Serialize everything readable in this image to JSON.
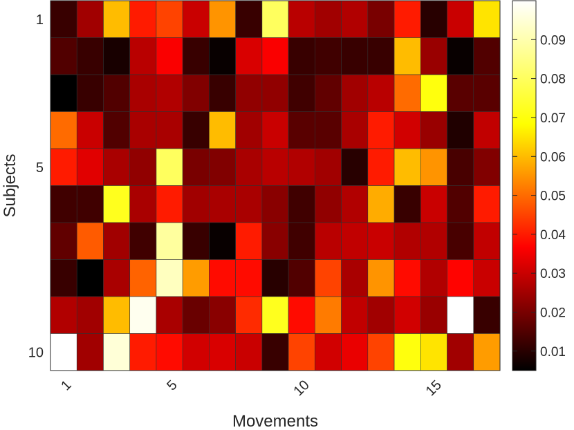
{
  "chart_data": {
    "type": "heatmap",
    "colormap": "hot",
    "xlabel": "Movements",
    "ylabel": "Subjects",
    "x_tick_labels": [
      "1",
      "5",
      "10",
      "15"
    ],
    "x_tick_positions": [
      1,
      5,
      10,
      15
    ],
    "y_tick_labels": [
      "1",
      "5",
      "10"
    ],
    "y_tick_positions": [
      1,
      5,
      10
    ],
    "n_rows": 10,
    "n_cols": 17,
    "color_range": [
      0.005,
      0.1
    ],
    "colorbar_ticks": [
      "0.01",
      "0.02",
      "0.03",
      "0.04",
      "0.05",
      "0.06",
      "0.07",
      "0.08",
      "0.09"
    ],
    "colorbar_tick_values": [
      0.01,
      0.02,
      0.03,
      0.04,
      0.05,
      0.06,
      0.07,
      0.08,
      0.09
    ],
    "values": [
      [
        0.012,
        0.025,
        0.06,
        0.04,
        0.045,
        0.03,
        0.055,
        0.012,
        0.08,
        0.028,
        0.025,
        0.027,
        0.02,
        0.04,
        0.01,
        0.03,
        0.065
      ],
      [
        0.015,
        0.012,
        0.008,
        0.028,
        0.036,
        0.012,
        0.006,
        0.032,
        0.036,
        0.012,
        0.013,
        0.012,
        0.012,
        0.06,
        0.024,
        0.006,
        0.015
      ],
      [
        0.005,
        0.012,
        0.015,
        0.026,
        0.027,
        0.021,
        0.012,
        0.023,
        0.023,
        0.013,
        0.017,
        0.025,
        0.028,
        0.05,
        0.07,
        0.016,
        0.016
      ],
      [
        0.05,
        0.03,
        0.015,
        0.026,
        0.026,
        0.012,
        0.06,
        0.025,
        0.03,
        0.016,
        0.016,
        0.026,
        0.04,
        0.031,
        0.024,
        0.009,
        0.029
      ],
      [
        0.04,
        0.033,
        0.026,
        0.023,
        0.08,
        0.02,
        0.021,
        0.026,
        0.028,
        0.027,
        0.025,
        0.01,
        0.04,
        0.06,
        0.055,
        0.014,
        0.021
      ],
      [
        0.013,
        0.013,
        0.072,
        0.026,
        0.04,
        0.025,
        0.026,
        0.026,
        0.022,
        0.013,
        0.023,
        0.027,
        0.058,
        0.012,
        0.03,
        0.015,
        0.04
      ],
      [
        0.017,
        0.048,
        0.025,
        0.013,
        0.088,
        0.012,
        0.006,
        0.04,
        0.022,
        0.013,
        0.028,
        0.029,
        0.03,
        0.027,
        0.027,
        0.014,
        0.029
      ],
      [
        0.012,
        0.005,
        0.026,
        0.049,
        0.092,
        0.056,
        0.038,
        0.038,
        0.01,
        0.015,
        0.045,
        0.026,
        0.055,
        0.038,
        0.027,
        0.037,
        0.03
      ],
      [
        0.027,
        0.025,
        0.06,
        0.098,
        0.026,
        0.018,
        0.022,
        0.042,
        0.072,
        0.038,
        0.052,
        0.029,
        0.025,
        0.031,
        0.024,
        0.1,
        0.012
      ],
      [
        0.1,
        0.025,
        0.095,
        0.04,
        0.038,
        0.031,
        0.032,
        0.03,
        0.012,
        0.045,
        0.031,
        0.034,
        0.045,
        0.07,
        0.065,
        0.025,
        0.056
      ]
    ]
  }
}
